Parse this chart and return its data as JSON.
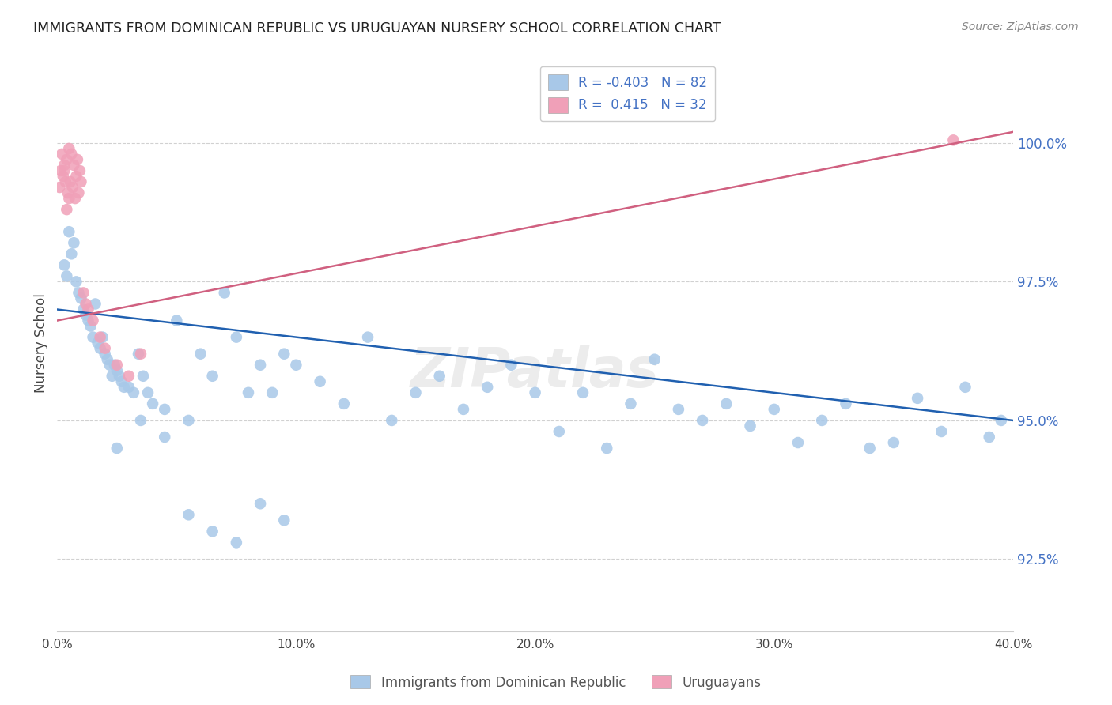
{
  "title": "IMMIGRANTS FROM DOMINICAN REPUBLIC VS URUGUAYAN NURSERY SCHOOL CORRELATION CHART",
  "source": "Source: ZipAtlas.com",
  "ylabel": "Nursery School",
  "xlim": [
    0.0,
    40.0
  ],
  "ylim": [
    91.2,
    101.6
  ],
  "legend_blue_R": "-0.403",
  "legend_blue_N": "82",
  "legend_pink_R": "0.415",
  "legend_pink_N": "32",
  "blue_color": "#a8c8e8",
  "pink_color": "#f0a0b8",
  "blue_line_color": "#2060b0",
  "pink_line_color": "#d06080",
  "watermark": "ZIPatlas",
  "blue_line_x": [
    0.0,
    40.0
  ],
  "blue_line_y": [
    97.0,
    95.0
  ],
  "pink_line_x": [
    0.0,
    40.0
  ],
  "pink_line_y": [
    96.8,
    100.2
  ],
  "yticks": [
    92.5,
    95.0,
    97.5,
    100.0
  ],
  "ytick_labels": [
    "92.5%",
    "95.0%",
    "97.5%",
    "100.0%"
  ],
  "xticks": [
    0,
    10,
    20,
    30,
    40
  ],
  "xtick_labels": [
    "0.0%",
    "10.0%",
    "20.0%",
    "30.0%",
    "40.0%"
  ],
  "blue_x": [
    0.3,
    0.4,
    0.5,
    0.6,
    0.7,
    0.8,
    0.9,
    1.0,
    1.1,
    1.2,
    1.3,
    1.4,
    1.5,
    1.6,
    1.7,
    1.8,
    1.9,
    2.0,
    2.1,
    2.2,
    2.3,
    2.4,
    2.5,
    2.6,
    2.7,
    2.8,
    3.0,
    3.2,
    3.4,
    3.6,
    3.8,
    4.0,
    4.5,
    5.0,
    5.5,
    6.0,
    6.5,
    7.0,
    7.5,
    8.0,
    8.5,
    9.0,
    9.5,
    10.0,
    11.0,
    12.0,
    13.0,
    14.0,
    15.0,
    16.0,
    17.0,
    18.0,
    19.0,
    20.0,
    21.0,
    22.0,
    23.0,
    24.0,
    25.0,
    26.0,
    27.0,
    28.0,
    29.0,
    30.0,
    31.0,
    32.0,
    33.0,
    34.0,
    35.0,
    36.0,
    37.0,
    38.0,
    39.0,
    39.5,
    2.5,
    3.5,
    4.5,
    5.5,
    6.5,
    7.5,
    8.5,
    9.5
  ],
  "blue_y": [
    97.8,
    97.6,
    98.4,
    98.0,
    98.2,
    97.5,
    97.3,
    97.2,
    97.0,
    96.9,
    96.8,
    96.7,
    96.5,
    97.1,
    96.4,
    96.3,
    96.5,
    96.2,
    96.1,
    96.0,
    95.8,
    96.0,
    95.9,
    95.8,
    95.7,
    95.6,
    95.6,
    95.5,
    96.2,
    95.8,
    95.5,
    95.3,
    95.2,
    96.8,
    95.0,
    96.2,
    95.8,
    97.3,
    96.5,
    95.5,
    96.0,
    95.5,
    96.2,
    96.0,
    95.7,
    95.3,
    96.5,
    95.0,
    95.5,
    95.8,
    95.2,
    95.6,
    96.0,
    95.5,
    94.8,
    95.5,
    94.5,
    95.3,
    96.1,
    95.2,
    95.0,
    95.3,
    94.9,
    95.2,
    94.6,
    95.0,
    95.3,
    94.5,
    94.6,
    95.4,
    94.8,
    95.6,
    94.7,
    95.0,
    94.5,
    95.0,
    94.7,
    93.3,
    93.0,
    92.8,
    93.5,
    93.2
  ],
  "pink_x": [
    0.1,
    0.15,
    0.2,
    0.25,
    0.3,
    0.35,
    0.4,
    0.45,
    0.5,
    0.55,
    0.6,
    0.65,
    0.7,
    0.75,
    0.8,
    0.85,
    0.9,
    0.95,
    1.0,
    1.1,
    1.2,
    1.3,
    1.5,
    1.8,
    2.0,
    2.5,
    3.0,
    3.5,
    0.3,
    0.4,
    0.5,
    37.5
  ],
  "pink_y": [
    99.2,
    99.5,
    99.8,
    99.4,
    99.6,
    99.3,
    99.7,
    99.1,
    99.9,
    99.3,
    99.8,
    99.2,
    99.6,
    99.0,
    99.4,
    99.7,
    99.1,
    99.5,
    99.3,
    97.3,
    97.1,
    97.0,
    96.8,
    96.5,
    96.3,
    96.0,
    95.8,
    96.2,
    99.5,
    98.8,
    99.0,
    100.05
  ]
}
